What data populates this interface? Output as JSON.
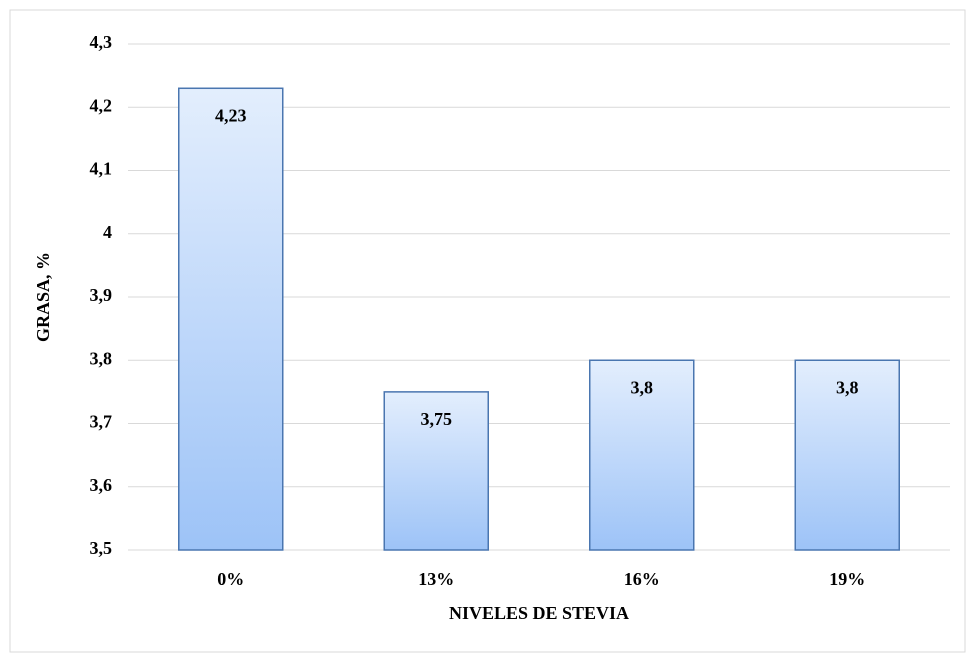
{
  "chart_data": {
    "type": "bar",
    "categories": [
      "0%",
      "13%",
      "16%",
      "19%"
    ],
    "values": [
      4.23,
      3.75,
      3.8,
      3.8
    ],
    "value_labels": [
      "4,23",
      "3,75",
      "3,8",
      "3,8"
    ],
    "color": "#4a76b0",
    "ylim": [
      3.5,
      4.3
    ],
    "yticks": [
      {
        "value": 3.5,
        "label": "3,5"
      },
      {
        "value": 3.6,
        "label": "3,6"
      },
      {
        "value": 3.7,
        "label": "3,7"
      },
      {
        "value": 3.8,
        "label": "3,8"
      },
      {
        "value": 3.9,
        "label": "3,9"
      },
      4,
      {
        "value": 4.1,
        "label": "4,1"
      },
      {
        "value": 4.2,
        "label": "4,2"
      },
      {
        "value": 4.3,
        "label": "4,3"
      }
    ],
    "grid": true,
    "y_label": "GRASA, %",
    "x_label": "NIVELES DE STEVIA"
  }
}
